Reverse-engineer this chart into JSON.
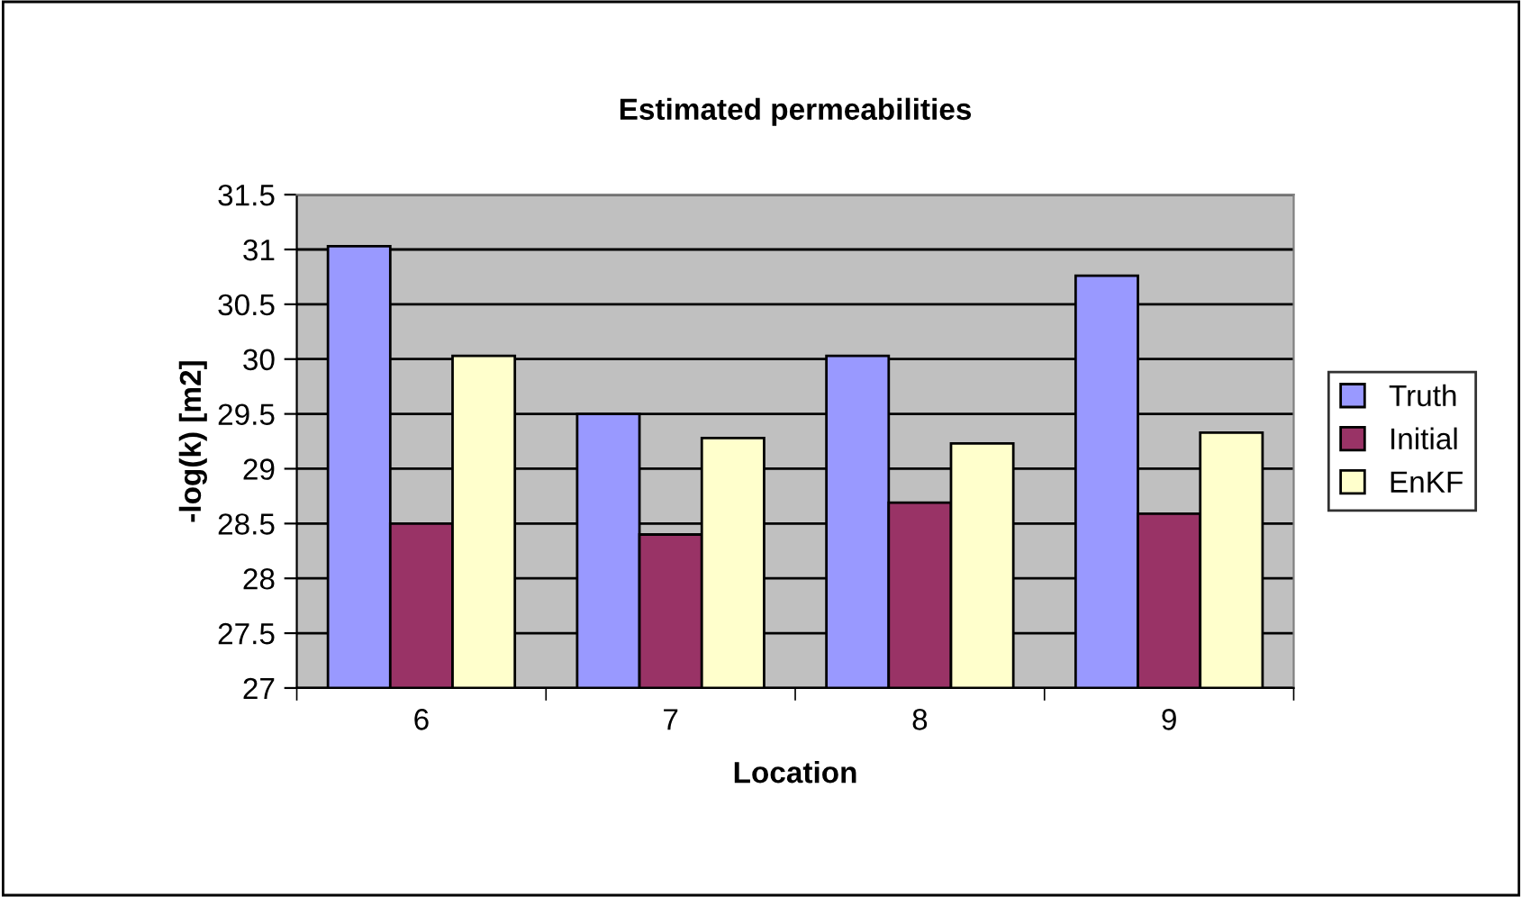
{
  "chart_data": {
    "type": "bar",
    "title": "Estimated permeabilities",
    "xlabel": "Location",
    "ylabel": "-log(k) [m2]",
    "categories": [
      "6",
      "7",
      "8",
      "9"
    ],
    "series": [
      {
        "name": "Truth",
        "color": "#9999ff",
        "values": [
          31.03,
          29.5,
          30.03,
          30.76
        ]
      },
      {
        "name": "Initial",
        "color": "#993366",
        "values": [
          28.5,
          28.4,
          28.69,
          28.59
        ]
      },
      {
        "name": "EnKF",
        "color": "#ffffcc",
        "values": [
          30.03,
          29.28,
          29.23,
          29.33
        ]
      }
    ],
    "ylim": [
      27,
      31.5
    ],
    "yticks": [
      27,
      27.5,
      28,
      28.5,
      29,
      29.5,
      30,
      30.5,
      31,
      31.5
    ],
    "grid": "y",
    "legend": "right"
  }
}
